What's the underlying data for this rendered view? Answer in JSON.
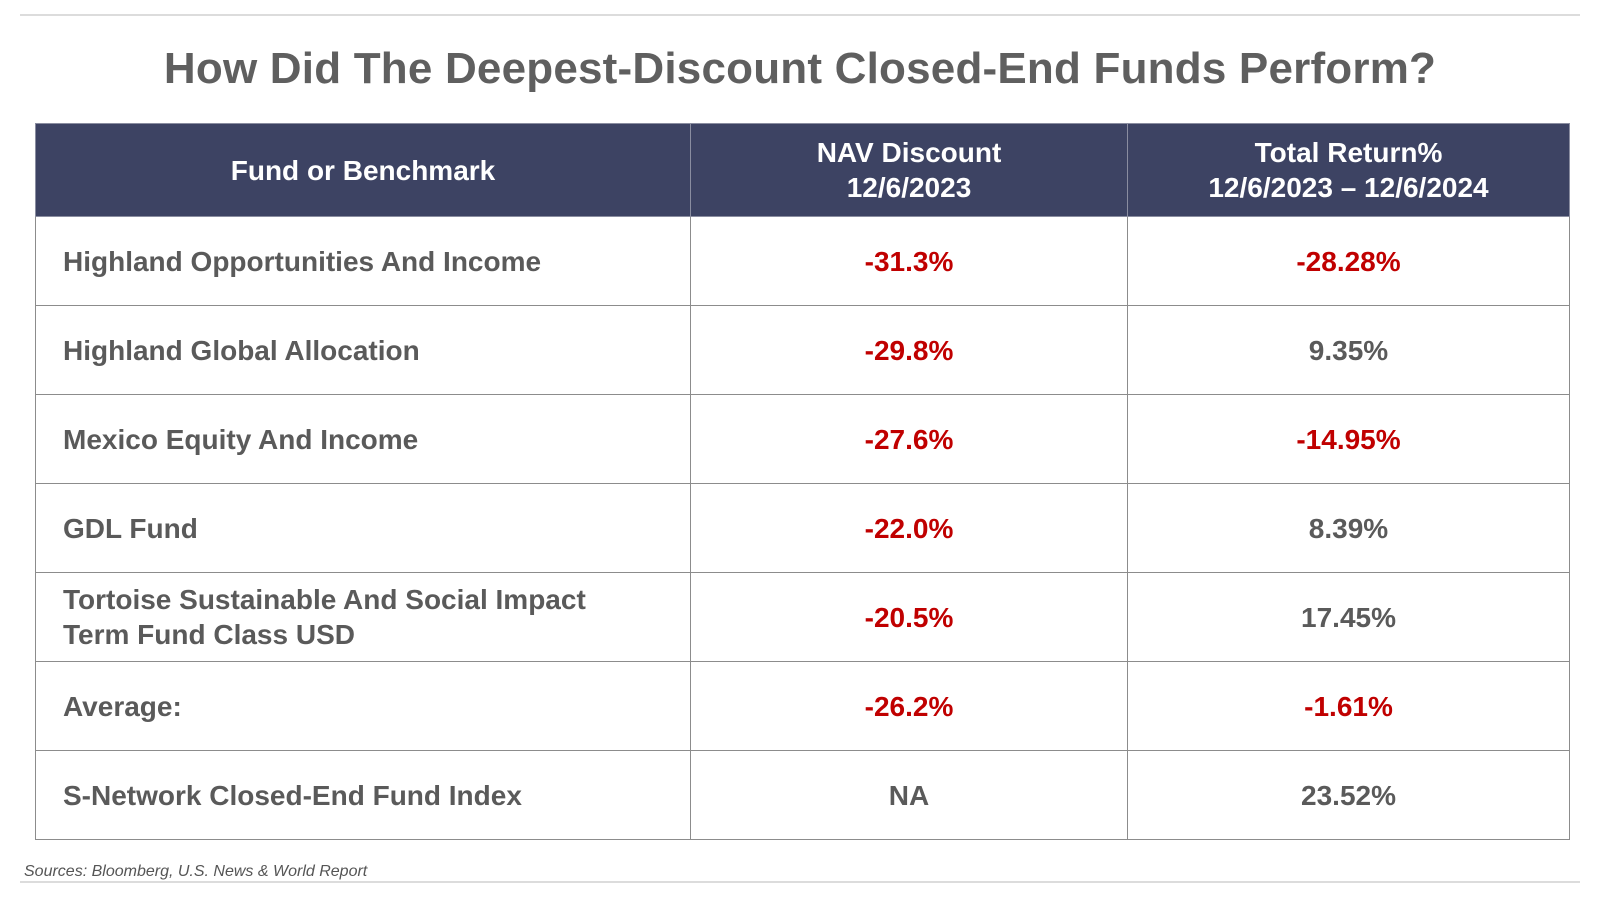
{
  "title": "How Did The Deepest-Discount Closed-End Funds Perform?",
  "colors": {
    "header_bg": "#3d4363",
    "header_text": "#ffffff",
    "negative": "#c00000",
    "body_text": "#5a5a5a"
  },
  "chart_data": {
    "type": "table",
    "title": "How Did The Deepest-Discount Closed-End Funds Perform?",
    "columns": [
      {
        "lines": [
          "Fund or Benchmark"
        ]
      },
      {
        "lines": [
          "NAV Discount",
          "12/6/2023"
        ]
      },
      {
        "lines": [
          "Total Return%",
          "12/6/2023 – 12/6/2024"
        ]
      }
    ],
    "rows": [
      {
        "name_lines": [
          "Highland Opportunities And Income"
        ],
        "nav_discount": "-31.3%",
        "total_return": "-28.28%"
      },
      {
        "name_lines": [
          "Highland Global Allocation"
        ],
        "nav_discount": "-29.8%",
        "total_return": "9.35%"
      },
      {
        "name_lines": [
          "Mexico Equity And Income"
        ],
        "nav_discount": "-27.6%",
        "total_return": "-14.95%"
      },
      {
        "name_lines": [
          "GDL Fund"
        ],
        "nav_discount": "-22.0%",
        "total_return": "8.39%"
      },
      {
        "name_lines": [
          "Tortoise Sustainable And Social Impact",
          "Term Fund Class USD"
        ],
        "nav_discount": "-20.5%",
        "total_return": "17.45%"
      },
      {
        "name_lines": [
          "Average:"
        ],
        "nav_discount": "-26.2%",
        "total_return": "-1.61%"
      },
      {
        "name_lines": [
          "S-Network Closed-End Fund Index"
        ],
        "nav_discount": "NA",
        "total_return": "23.52%"
      }
    ]
  },
  "source": "Sources: Bloomberg, U.S. News & World Report"
}
